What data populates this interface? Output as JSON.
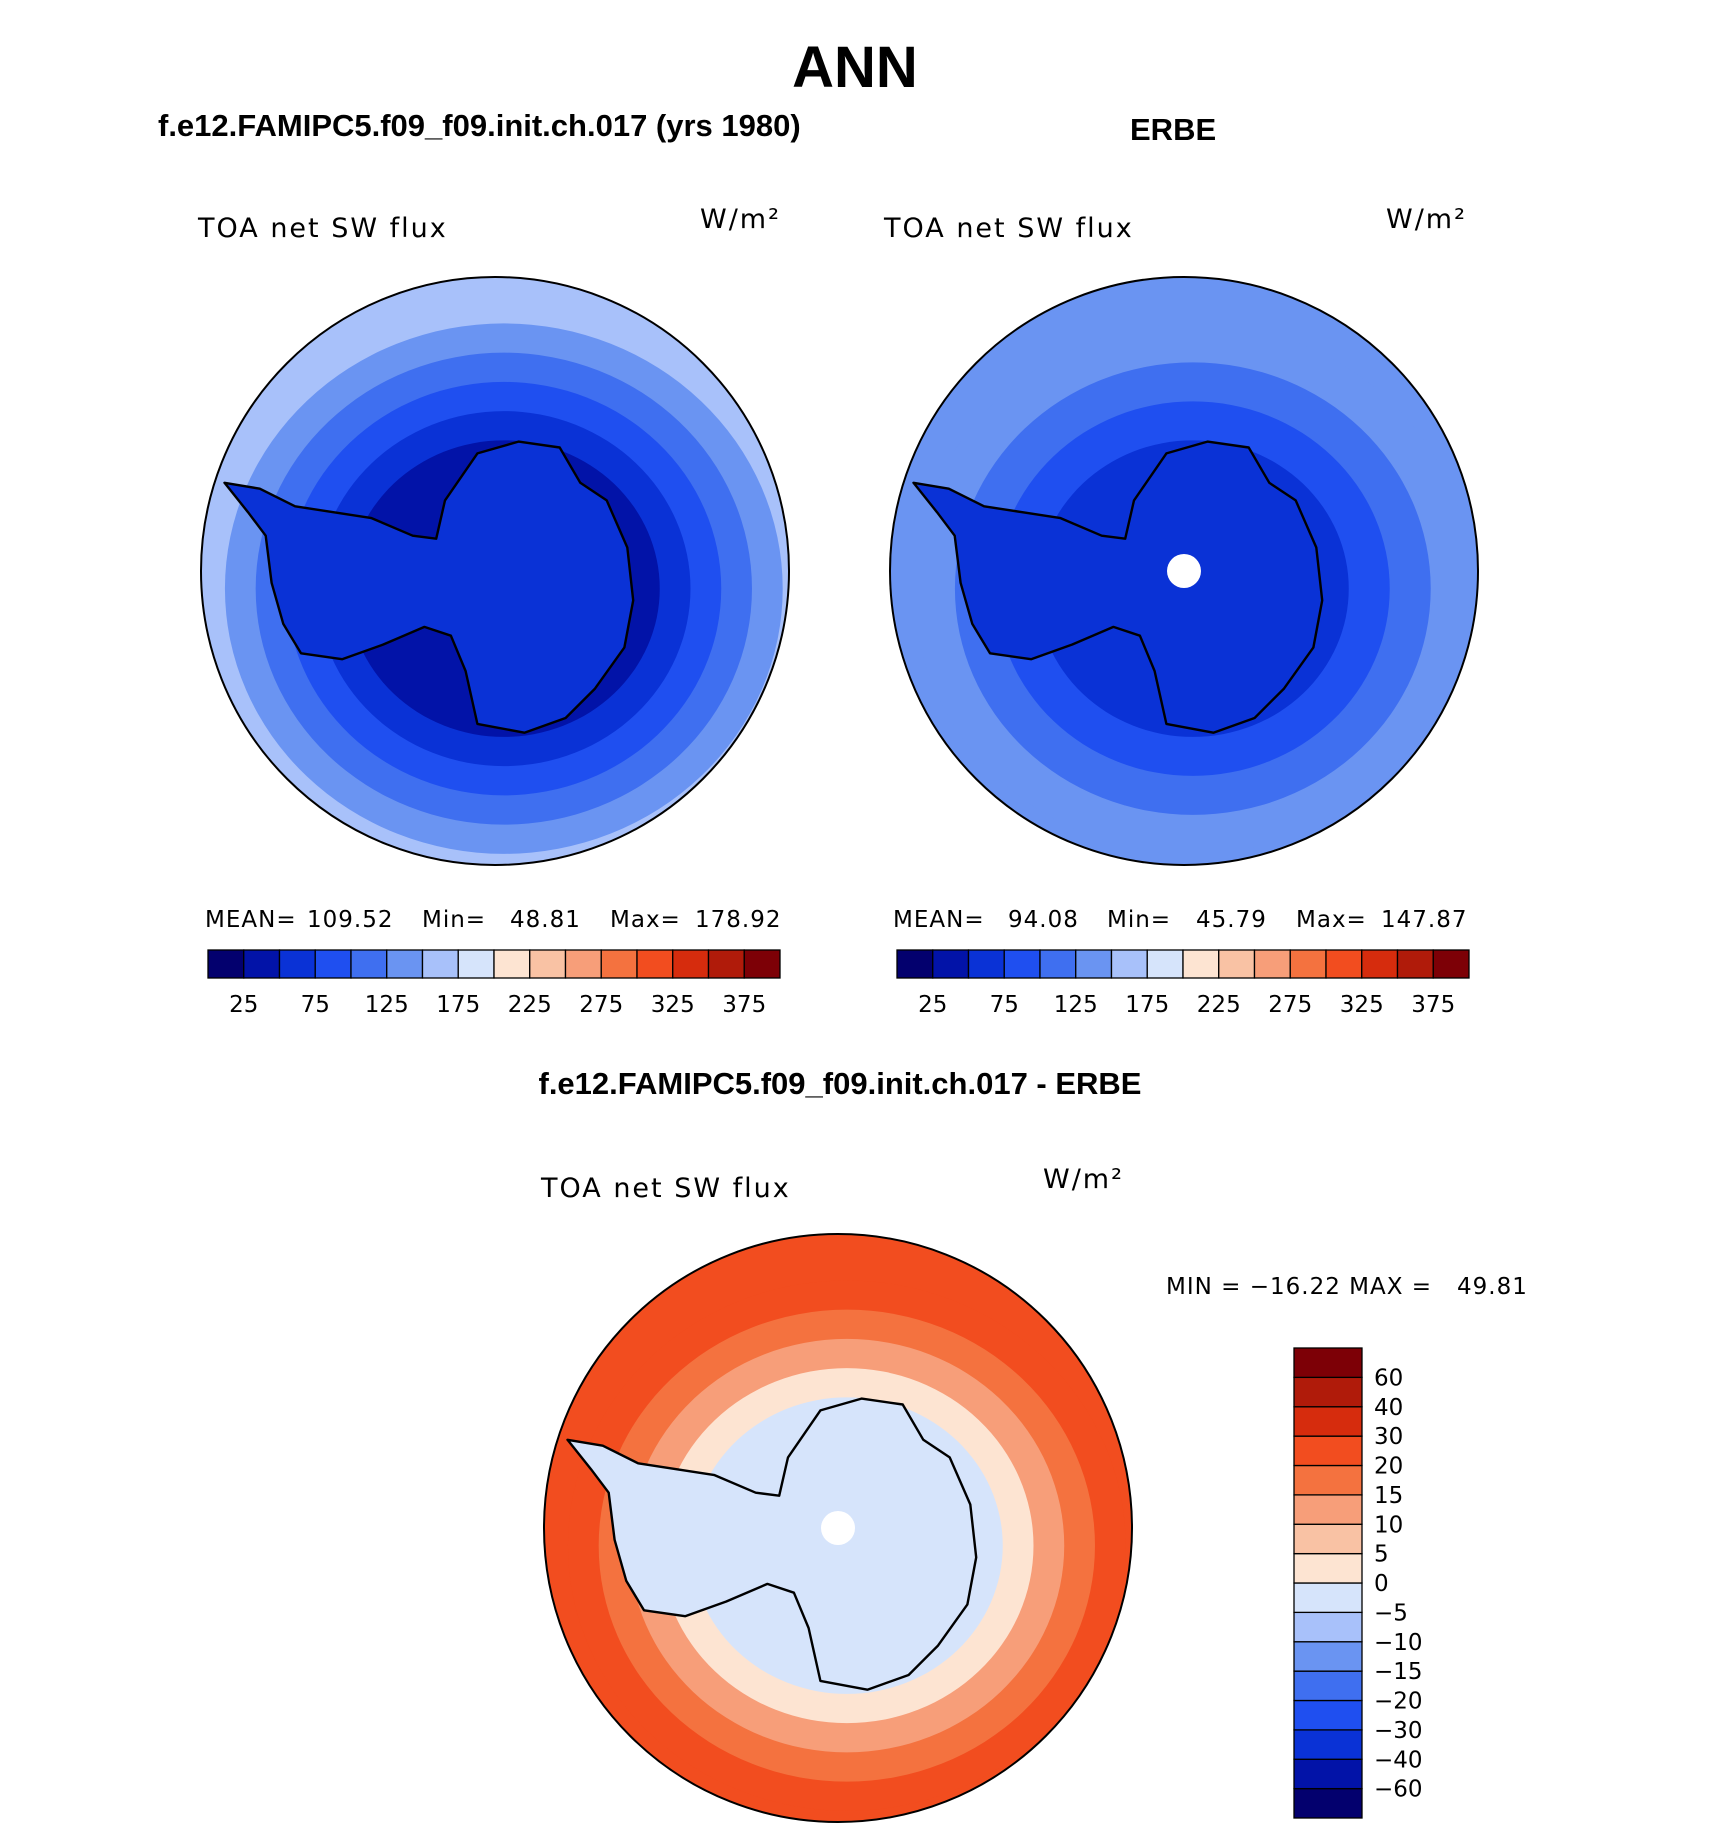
{
  "figure": {
    "main_title": "ANN",
    "left_title": "f.e12.FAMIPC5.f09_f09.init.ch.017 (yrs 1980)",
    "right_title": "ERBE",
    "diff_title": "f.e12.FAMIPC5.f09_f09.init.ch.017 - ERBE"
  },
  "colors": {
    "seq": [
      "#03006e",
      "#0213a8",
      "#0a32d6",
      "#1f4ff0",
      "#3f6ff0",
      "#6a94f2",
      "#a8c1fa",
      "#d6e4fb",
      "#fde4d2",
      "#f9c2a4",
      "#f79e79",
      "#f4723f",
      "#f24d1f",
      "#d62c0d",
      "#b01b0a",
      "#7d0006"
    ],
    "diff": [
      "#03006e",
      "#0213a8",
      "#0a32d6",
      "#1f4ff0",
      "#3f6ff0",
      "#6a94f2",
      "#a8c1fa",
      "#d6e4fb",
      "#fde4d2",
      "#f9c2a4",
      "#f79e79",
      "#f4723f",
      "#f24d1f",
      "#d62c0d",
      "#b01b0a",
      "#7d0006"
    ]
  },
  "chart_data": [
    {
      "type": "heatmap",
      "projection": "south polar stereographic",
      "title": "f.e12.FAMIPC5.f09_f09.init.ch.017 (yrs 1980)",
      "variable": "TOA net SW flux",
      "units": "W/m²",
      "stats": {
        "mean_label": "MEAN=",
        "mean": "109.52",
        "min_label": "Min=",
        "min": "48.81",
        "max_label": "Max=",
        "max": "178.92"
      },
      "levels": [
        25,
        50,
        75,
        100,
        125,
        150,
        175,
        200,
        225,
        250,
        275,
        300,
        325,
        350,
        375
      ],
      "colorbar_ticks": [
        "25",
        "75",
        "125",
        "175",
        "225",
        "275",
        "325",
        "375"
      ],
      "rings": [
        {
          "band": 5,
          "value": 160
        },
        {
          "band": 4,
          "value": 145
        },
        {
          "band": 3,
          "value": 120
        },
        {
          "band": 2,
          "value": 95
        },
        {
          "band": 1,
          "value": 60
        }
      ]
    },
    {
      "type": "heatmap",
      "projection": "south polar stereographic",
      "title": "ERBE",
      "variable": "TOA net SW flux",
      "units": "W/m²",
      "stats": {
        "mean_label": "MEAN=",
        "mean": "94.08",
        "min_label": "Min=",
        "min": "45.79",
        "max_label": "Max=",
        "max": "147.87"
      },
      "levels": [
        25,
        50,
        75,
        100,
        125,
        150,
        175,
        200,
        225,
        250,
        275,
        300,
        325,
        350,
        375
      ],
      "colorbar_ticks": [
        "25",
        "75",
        "125",
        "175",
        "225",
        "275",
        "325",
        "375"
      ],
      "rings": [
        {
          "band": 5,
          "value": 140
        },
        {
          "band": 4,
          "value": 118
        },
        {
          "band": 3,
          "value": 95
        },
        {
          "band": 2,
          "value": 70
        }
      ]
    },
    {
      "type": "heatmap",
      "projection": "south polar stereographic",
      "title": "f.e12.FAMIPC5.f09_f09.init.ch.017 - ERBE",
      "variable": "TOA net SW flux",
      "units": "W/m²",
      "stats": {
        "text": "MIN = −16.22 MAX =   49.81",
        "min": "−16.22",
        "max": "49.81"
      },
      "levels": [
        -60,
        -40,
        -30,
        -20,
        -15,
        -10,
        -5,
        0,
        5,
        10,
        15,
        20,
        30,
        40,
        60
      ],
      "colorbar_ticks": [
        "60",
        "40",
        "30",
        "20",
        "15",
        "10",
        "5",
        "0",
        "−5",
        "−10",
        "−15",
        "−20",
        "−30",
        "−40",
        "−60"
      ],
      "rings": [
        {
          "band": 12,
          "value": 22
        },
        {
          "band": 11,
          "value": 15
        },
        {
          "band": 10,
          "value": 10
        },
        {
          "band": 8,
          "value": 2
        },
        {
          "band": 7,
          "value": -3
        }
      ]
    }
  ]
}
